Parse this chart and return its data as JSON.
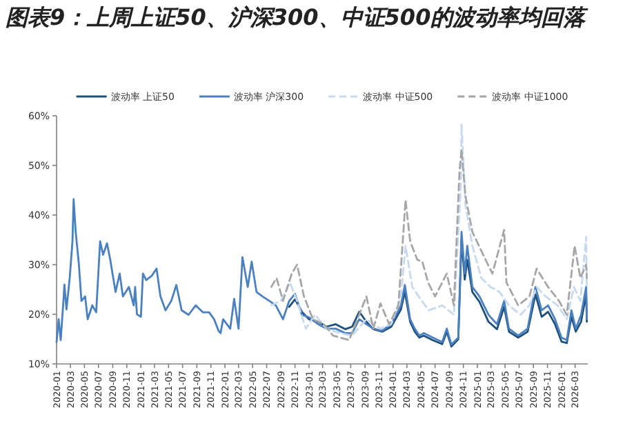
{
  "chart_data": {
    "type": "line",
    "title": "图表9：上周上证50、沪深300、中证500的波动率均回落",
    "legend": "top",
    "grid": false,
    "marker": "none",
    "xlim": [
      "2020-01-01",
      "2026-04-25"
    ],
    "xticks": [
      "2020-01",
      "2020-03",
      "2020-05",
      "2020-07",
      "2020-09",
      "2020-11",
      "2021-01",
      "2021-03",
      "2021-05",
      "2021-07",
      "2021-09",
      "2021-11",
      "2022-01",
      "2022-03",
      "2022-05",
      "2022-07",
      "2022-09",
      "2022-11",
      "2023-01",
      "2023-03",
      "2023-05",
      "2023-07",
      "2023-09",
      "2023-11",
      "2024-01",
      "2024-03",
      "2024-05",
      "2024-07",
      "2024-09",
      "2024-11",
      "2025-01",
      "2025-03",
      "2025-05",
      "2025-07",
      "2025-09",
      "2025-11",
      "2026-01",
      "2026-03"
    ],
    "ylim": [
      10,
      60
    ],
    "yticks": [
      {
        "value": 10,
        "label": "10%"
      },
      {
        "value": 20,
        "label": "20%"
      },
      {
        "value": 30,
        "label": "30%"
      },
      {
        "value": 40,
        "label": "40%"
      },
      {
        "value": 50,
        "label": "50%"
      },
      {
        "value": 60,
        "label": "60%"
      }
    ],
    "series": [
      {
        "name": "波动率 上证50",
        "color": "#1d4f7c",
        "line_style": "solid",
        "x": [
          "2022-10-07",
          "2022-11-01",
          "2022-12-01",
          "2023-01-01",
          "2023-02-10",
          "2023-03-18",
          "2023-04-27",
          "2023-06-07",
          "2023-07-07",
          "2023-08-07",
          "2023-09-07",
          "2023-10-07",
          "2023-11-15",
          "2023-12-24",
          "2024-02-04",
          "2024-02-21",
          "2024-03-15",
          "2024-04-04",
          "2024-04-24",
          "2024-05-13",
          "2024-06-21",
          "2024-08-01",
          "2024-08-21",
          "2024-09-10",
          "2024-10-10",
          "2024-10-24",
          "2024-11-07",
          "2024-11-18",
          "2024-12-10",
          "2025-01-10",
          "2025-02-18",
          "2025-03-27",
          "2025-04-27",
          "2025-05-18",
          "2025-06-27",
          "2025-08-07",
          "2025-09-10",
          "2025-10-07",
          "2025-11-04",
          "2025-12-04",
          "2026-01-01",
          "2026-01-24",
          "2026-02-13",
          "2026-03-04",
          "2026-03-27",
          "2026-04-18",
          "2026-04-21"
        ],
        "values": [
          21.5,
          23,
          20.5,
          19,
          18.5,
          17.5,
          18,
          17,
          17.5,
          20.5,
          18.5,
          17,
          16.5,
          17.5,
          21,
          24.5,
          18.5,
          16.5,
          15.3,
          15.7,
          14.8,
          14,
          16.5,
          13.5,
          15,
          35,
          27,
          31,
          24.5,
          22.5,
          18.5,
          17,
          21.5,
          16.5,
          15.3,
          16.5,
          24,
          19.5,
          20.5,
          18,
          14.5,
          14.2,
          19.5,
          16.5,
          18.5,
          24,
          18.5
        ]
      },
      {
        "name": "波动率 沪深300",
        "color": "#4a80c0",
        "line_style": "solid",
        "x": [
          "2020-01-01",
          "2020-01-10",
          "2020-01-19",
          "2020-02-01",
          "2020-02-04",
          "2020-02-13",
          "2020-02-27",
          "2020-03-10",
          "2020-03-15",
          "2020-03-24",
          "2020-04-07",
          "2020-04-18",
          "2020-05-04",
          "2020-05-15",
          "2020-06-04",
          "2020-06-21",
          "2020-07-08",
          "2020-07-21",
          "2020-08-07",
          "2020-08-21",
          "2020-09-13",
          "2020-10-01",
          "2020-10-15",
          "2020-11-10",
          "2020-12-01",
          "2020-12-07",
          "2020-12-15",
          "2021-01-01",
          "2021-01-10",
          "2021-01-24",
          "2021-02-18",
          "2021-03-10",
          "2021-03-27",
          "2021-04-18",
          "2021-05-13",
          "2021-06-04",
          "2021-06-27",
          "2021-07-27",
          "2021-08-27",
          "2021-09-27",
          "2021-10-24",
          "2021-11-15",
          "2021-12-04",
          "2021-12-13",
          "2021-12-24",
          "2022-01-24",
          "2022-02-10",
          "2022-03-01",
          "2022-03-18",
          "2022-04-10",
          "2022-04-27",
          "2022-05-18",
          "2022-06-13",
          "2022-07-13",
          "2022-08-10",
          "2022-09-10",
          "2022-10-07",
          "2022-11-01",
          "2022-12-01",
          "2023-01-01",
          "2023-02-10",
          "2023-03-18",
          "2023-04-27",
          "2023-06-07",
          "2023-07-07",
          "2023-08-07",
          "2023-09-07",
          "2023-10-07",
          "2023-11-15",
          "2023-12-24",
          "2024-02-04",
          "2024-02-21",
          "2024-03-15",
          "2024-04-04",
          "2024-04-24",
          "2024-05-13",
          "2024-06-21",
          "2024-08-01",
          "2024-08-21",
          "2024-09-10",
          "2024-10-10",
          "2024-10-24",
          "2024-11-07",
          "2024-11-18",
          "2024-12-10",
          "2025-01-10",
          "2025-02-18",
          "2025-03-27",
          "2025-04-27",
          "2025-05-18",
          "2025-06-27",
          "2025-08-07",
          "2025-09-10",
          "2025-10-07",
          "2025-11-04",
          "2025-12-04",
          "2026-01-01",
          "2026-01-24",
          "2026-02-13",
          "2026-03-04",
          "2026-03-27",
          "2026-04-18",
          "2026-04-21"
        ],
        "values": [
          14.4,
          19,
          14.8,
          23.6,
          26,
          21,
          27.3,
          34.7,
          43.2,
          36.6,
          30,
          22.7,
          23.6,
          19,
          21.8,
          20.4,
          34.7,
          32,
          34.3,
          31,
          24.5,
          28.2,
          23.6,
          25.5,
          21.8,
          25.5,
          20,
          19.5,
          28.2,
          26.9,
          27.8,
          29.2,
          23.6,
          20.8,
          22.7,
          25.9,
          20.8,
          19.9,
          21.8,
          20.4,
          20.4,
          19,
          16.7,
          16.2,
          19,
          17.1,
          23.1,
          17.1,
          31.5,
          25.5,
          30.6,
          24.5,
          23.6,
          22.7,
          21.8,
          19,
          22.7,
          24.1,
          19.9,
          19.4,
          18,
          17.1,
          17.1,
          16.2,
          16.2,
          19,
          18,
          17.1,
          16.7,
          18,
          21.8,
          25.9,
          19,
          17.1,
          15.7,
          16.2,
          15.3,
          14.4,
          17.1,
          13.9,
          15.3,
          36.6,
          28.2,
          33.8,
          25.5,
          23.6,
          19.9,
          18,
          22.7,
          17.1,
          15.7,
          17.1,
          25.5,
          20.8,
          21.8,
          19,
          15.3,
          14.8,
          20.8,
          17.1,
          19.9,
          25.5,
          19
        ]
      },
      {
        "name": "波动率 中证500",
        "color": "#c6d9f0",
        "line_style": "dashed",
        "x": [
          "2022-07-21",
          "2022-09-01",
          "2022-10-10",
          "2022-11-10",
          "2022-12-18",
          "2023-01-27",
          "2023-03-18",
          "2023-05-18",
          "2023-07-07",
          "2023-09-07",
          "2023-11-07",
          "2023-12-24",
          "2024-02-04",
          "2024-02-24",
          "2024-03-24",
          "2024-04-21",
          "2024-06-04",
          "2024-08-01",
          "2024-09-21",
          "2024-10-21",
          "2024-10-24",
          "2024-11-10",
          "2024-12-10",
          "2025-01-18",
          "2025-02-27",
          "2025-04-07",
          "2025-05-18",
          "2025-07-07",
          "2025-08-15",
          "2025-09-15",
          "2025-10-24",
          "2025-12-15",
          "2026-01-24",
          "2026-02-24",
          "2026-03-24",
          "2026-04-18",
          "2026-04-21"
        ],
        "values": [
          21.8,
          22.7,
          26.4,
          22.7,
          17.1,
          19.9,
          17.1,
          16.2,
          15.7,
          19,
          17.1,
          18,
          23.6,
          33.8,
          25.5,
          23.6,
          20.8,
          21.8,
          19.9,
          45.8,
          58.3,
          42.1,
          33.8,
          27.3,
          25.5,
          24.5,
          21.8,
          19.9,
          21.8,
          25.5,
          23.6,
          21.8,
          19,
          25.5,
          22.7,
          35.6,
          25.5
        ]
      },
      {
        "name": "波动率 中证1000",
        "color": "#a6a6a6",
        "line_style": "dashed",
        "x": [
          "2022-07-21",
          "2022-08-13",
          "2022-09-10",
          "2022-10-18",
          "2022-11-10",
          "2022-12-10",
          "2023-01-18",
          "2023-03-07",
          "2023-04-15",
          "2023-06-24",
          "2023-09-07",
          "2023-10-07",
          "2023-11-07",
          "2023-12-15",
          "2024-01-24",
          "2024-02-24",
          "2024-03-15",
          "2024-04-15",
          "2024-05-07",
          "2024-06-01",
          "2024-07-01",
          "2024-08-21",
          "2024-09-21",
          "2024-10-15",
          "2024-10-24",
          "2024-11-10",
          "2024-12-10",
          "2025-01-27",
          "2025-03-07",
          "2025-04-27",
          "2025-05-07",
          "2025-06-27",
          "2025-08-15",
          "2025-09-15",
          "2025-11-04",
          "2025-12-21",
          "2026-01-24",
          "2026-02-27",
          "2026-03-24",
          "2026-04-18",
          "2026-04-21"
        ],
        "values": [
          25.5,
          27.3,
          22.7,
          28.2,
          30,
          23.6,
          19,
          18,
          15.7,
          14.8,
          23.6,
          17.1,
          22.2,
          18,
          21.8,
          43,
          34.7,
          31,
          30.6,
          26.4,
          23.6,
          28.2,
          21.8,
          48.8,
          53.2,
          43.9,
          36.6,
          31.9,
          28.2,
          37,
          26.4,
          21.8,
          23.6,
          29.2,
          25.5,
          22.7,
          19.9,
          33.8,
          27.3,
          30,
          27.3
        ]
      }
    ]
  }
}
